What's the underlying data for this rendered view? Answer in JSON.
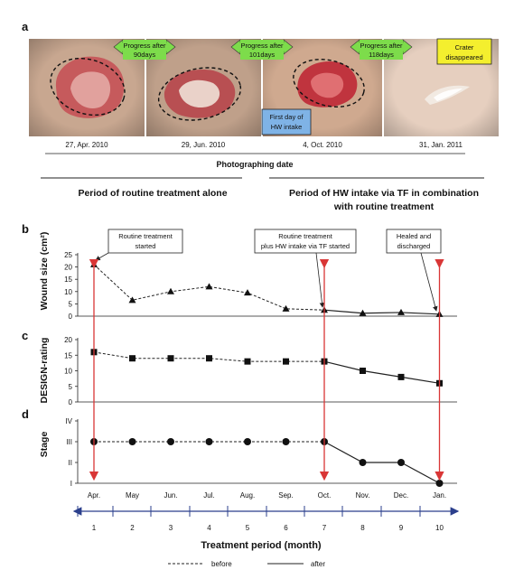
{
  "panels": {
    "a": "a",
    "b": "b",
    "c": "c",
    "d": "d"
  },
  "photos": [
    {
      "date": "27, Apr. 2010",
      "skin": "#c8a790",
      "wound": "#c65a5c",
      "wound_inner": "#e7b3ae",
      "has_ellipse": true
    },
    {
      "date": "29, Jun. 2010",
      "skin": "#bfa08a",
      "wound": "#b84f52",
      "wound_inner": "#f0e0d6",
      "has_ellipse": true
    },
    {
      "date": "4,  Oct. 2010",
      "skin": "#cfa98f",
      "wound": "#c0343e",
      "wound_inner": "#e77e7f",
      "has_ellipse": true
    },
    {
      "date": "31, Jan. 2011",
      "skin": "#e6cfbf",
      "wound": "#f3ece6",
      "wound_inner": "#ffffff",
      "has_ellipse": false
    }
  ],
  "progress_labels": [
    {
      "line1": "Progress after",
      "line2": "90days"
    },
    {
      "line1": "Progress after",
      "line2": "101days"
    },
    {
      "line1": "Progress after",
      "line2": "118days"
    }
  ],
  "first_day_note": {
    "line1": "First day of",
    "line2": "HW intake"
  },
  "crater_note": {
    "line1": "Crater",
    "line2": "disappeared"
  },
  "photo_axis_label": "Photographing date",
  "period_routine": "Period of routine treatment alone",
  "period_hw": {
    "line1": "Period of HW intake via TF in combination",
    "line2": "with routine treatment"
  },
  "callouts": [
    {
      "lines": [
        "Routine treatment",
        "started"
      ]
    },
    {
      "lines": [
        "Routine treatment",
        "plus HW intake via TF started"
      ]
    },
    {
      "lines": [
        "Healed and",
        "discharged"
      ]
    }
  ],
  "month_ticks": [
    "Apr.",
    "May",
    "Jun.",
    "Jul.",
    "Aug.",
    "Sep.",
    "Oct.",
    "Nov.",
    "Dec.",
    "Jan."
  ],
  "period_ticks": [
    "1",
    "2",
    "3",
    "4",
    "5",
    "6",
    "7",
    "8",
    "9",
    "10"
  ],
  "xlabel": "Treatment period (month)",
  "legend": {
    "before": "before",
    "after": "after"
  },
  "colors": {
    "arrow": "#d93636",
    "progress_box": "#7ddc4b",
    "first_day_box": "#7fb3e6",
    "crater_box": "#f4ef2e",
    "axis_arrow": "#2b3f8c"
  },
  "chart_data": [
    {
      "type": "line",
      "panel": "b",
      "ylabel": "Wound size (cm²)",
      "ylim": [
        0,
        25
      ],
      "yticks": [
        "0",
        "5",
        "10",
        "15",
        "20",
        "25"
      ],
      "x": [
        "Apr.",
        "May",
        "Jun.",
        "Jul.",
        "Aug.",
        "Sep.",
        "Oct.",
        "Nov.",
        "Dec.",
        "Jan."
      ],
      "values": [
        21,
        6.5,
        10,
        12,
        9.5,
        3,
        2.5,
        1.2,
        1.5,
        0.8
      ],
      "marker": "triangle",
      "style_change_index": 6
    },
    {
      "type": "line",
      "panel": "c",
      "ylabel": "DESIGN-rating",
      "ylim": [
        0,
        20
      ],
      "yticks": [
        "0",
        "5",
        "10",
        "15",
        "20"
      ],
      "x": [
        "Apr.",
        "May",
        "Jun.",
        "Jul.",
        "Aug.",
        "Sep.",
        "Oct.",
        "Nov.",
        "Dec.",
        "Jan."
      ],
      "values": [
        16,
        14,
        14,
        14,
        13,
        13,
        13,
        10,
        8,
        6
      ],
      "marker": "square",
      "style_change_index": 6
    },
    {
      "type": "line",
      "panel": "d",
      "ylabel": "Stage",
      "ylim": [
        1,
        4
      ],
      "yticks": [
        "I",
        "II",
        "III",
        "IV"
      ],
      "x": [
        "Apr.",
        "May",
        "Jun.",
        "Jul.",
        "Aug.",
        "Sep.",
        "Oct.",
        "Nov.",
        "Dec.",
        "Jan."
      ],
      "values": [
        3,
        3,
        3,
        3,
        3,
        3,
        3,
        2,
        2,
        1
      ],
      "marker": "circle",
      "style_change_index": 6
    }
  ]
}
